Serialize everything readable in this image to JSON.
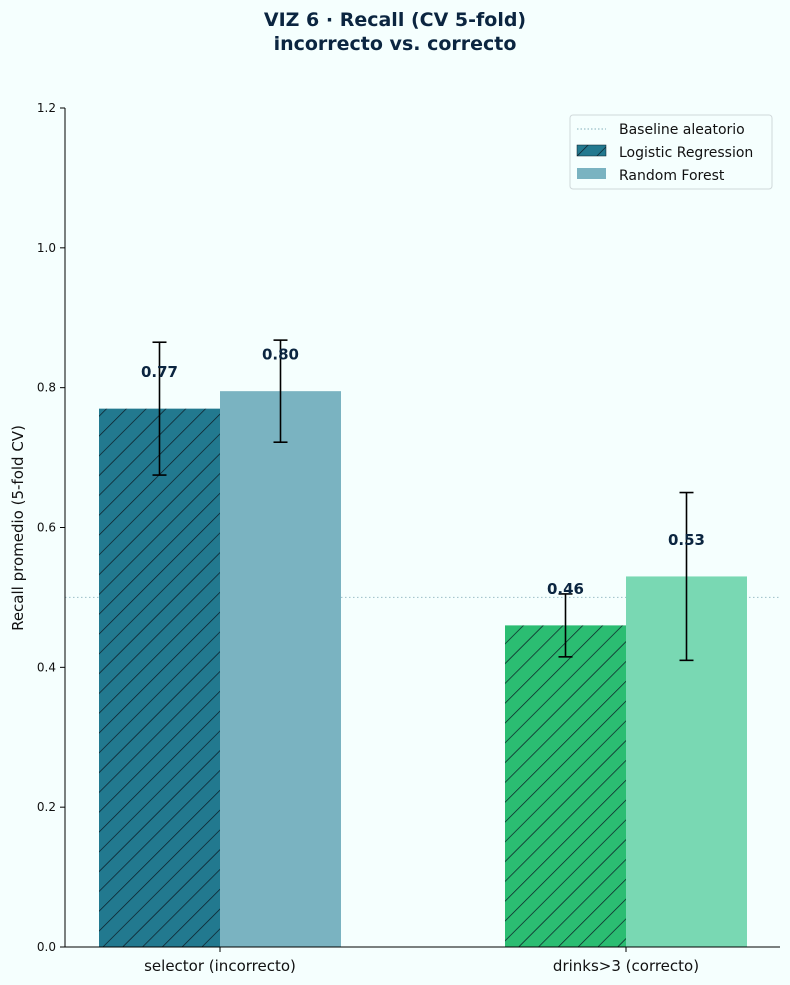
{
  "chart_data": {
    "type": "bar",
    "title": "VIZ 6 · Recall (CV 5-fold)",
    "subtitle": "incorrecto vs. correcto",
    "xlabel": "",
    "ylabel": "Recall promedio (5-fold CV)",
    "ylim": [
      0,
      1.2
    ],
    "yticks": [
      0.0,
      0.2,
      0.4,
      0.6,
      0.8,
      1.0,
      1.2
    ],
    "ytick_labels": [
      "0.0",
      "0.2",
      "0.4",
      "0.6",
      "0.8",
      "1.0",
      "1.2"
    ],
    "categories": [
      "selector (incorrecto)",
      "drinks>3 (correcto)"
    ],
    "series": [
      {
        "name": "Logistic Regression",
        "values": [
          0.77,
          0.46
        ],
        "errors": [
          0.095,
          0.045
        ],
        "labels": [
          "0.77",
          "0.46"
        ],
        "hatch": true,
        "colors": [
          "#22798f",
          "#2bbd72"
        ]
      },
      {
        "name": "Random Forest",
        "values": [
          0.795,
          0.53
        ],
        "errors": [
          0.073,
          0.12
        ],
        "labels": [
          "0.80",
          "0.53"
        ],
        "hatch": false,
        "colors": [
          "#7ab3c1",
          "#79d8b3"
        ]
      }
    ],
    "baseline": {
      "name": "Baseline aleatorio",
      "value": 0.5,
      "color": "#9bbfc7"
    },
    "legend": {
      "position": "top-right",
      "entries": [
        "Baseline aleatorio",
        "Logistic Regression",
        "Random Forest"
      ]
    },
    "grid": false
  }
}
